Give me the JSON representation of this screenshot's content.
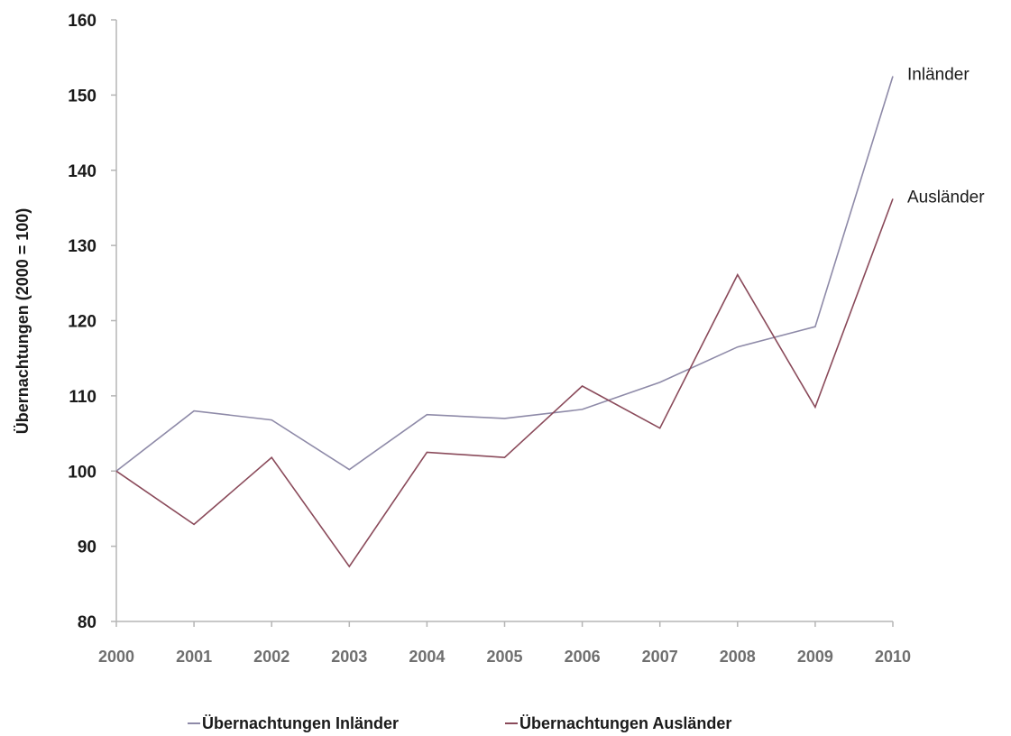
{
  "chart_data": {
    "type": "line",
    "title": "",
    "xlabel": "",
    "ylabel": "Übernachtungen (2000 = 100)",
    "x": [
      "2000",
      "2001",
      "2002",
      "2003",
      "2004",
      "2005",
      "2006",
      "2007",
      "2008",
      "2009",
      "2010"
    ],
    "ylim": [
      80,
      160
    ],
    "yticks": [
      "80",
      "90",
      "100",
      "110",
      "120",
      "130",
      "140",
      "150",
      "160"
    ],
    "grid": false,
    "legend": {
      "placement": "bottom",
      "entries": [
        "Übernachtungen Inländer",
        "Übernachtungen Ausländer"
      ]
    },
    "series": [
      {
        "name": "Übernachtungen Inländer",
        "end_label": "Inländer",
        "color": "#8e8aa8",
        "values": [
          100,
          108,
          106.8,
          100.2,
          107.5,
          107,
          108.2,
          111.8,
          116.5,
          119.2,
          152.5
        ]
      },
      {
        "name": "Übernachtungen Ausländer",
        "end_label": "Ausländer",
        "color": "#8a4a5a",
        "values": [
          100,
          92.9,
          101.8,
          87.3,
          102.5,
          101.8,
          111.3,
          105.7,
          126.1,
          108.5,
          136.2
        ]
      }
    ]
  },
  "colors": {
    "axis": "#b5b5b5",
    "background": "#ffffff"
  }
}
